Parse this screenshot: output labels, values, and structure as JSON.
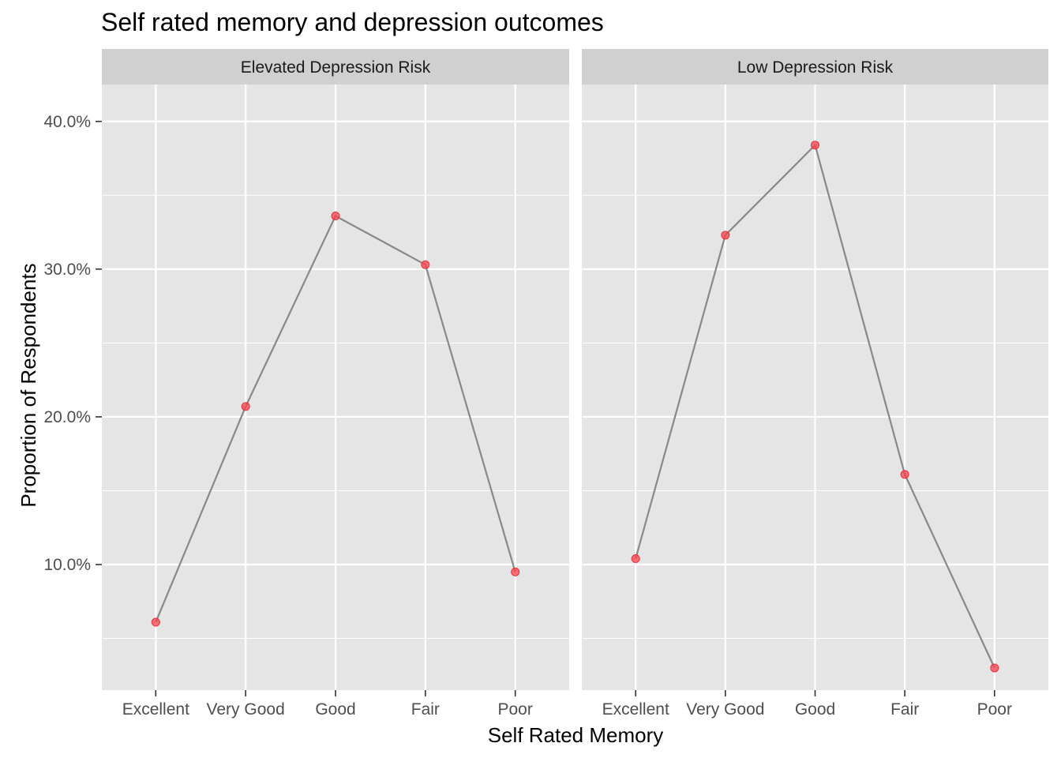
{
  "chart_data": {
    "type": "line",
    "title": "Self rated memory and depression outcomes",
    "xlabel": "Self Rated Memory",
    "ylabel": "Proportion of Respondents",
    "categories": [
      "Excellent",
      "Very Good",
      "Good",
      "Fair",
      "Poor"
    ],
    "y_ticks": [
      {
        "value": 0.1,
        "label": "10.0%"
      },
      {
        "value": 0.2,
        "label": "20.0%"
      },
      {
        "value": 0.3,
        "label": "30.0%"
      },
      {
        "value": 0.4,
        "label": "40.0%"
      }
    ],
    "ylim": [
      0.015,
      0.425
    ],
    "grid": true,
    "colors": {
      "panel_bg": "#e5e5e5",
      "strip_bg": "#d0d0d0",
      "grid": "#ffffff",
      "line": "#888888",
      "point": "#f8414b"
    },
    "facets": [
      {
        "label": "Elevated Depression Risk",
        "values": [
          0.061,
          0.207,
          0.336,
          0.303,
          0.095
        ]
      },
      {
        "label": "Low Depression Risk",
        "values": [
          0.104,
          0.323,
          0.384,
          0.161,
          0.03
        ]
      }
    ]
  }
}
